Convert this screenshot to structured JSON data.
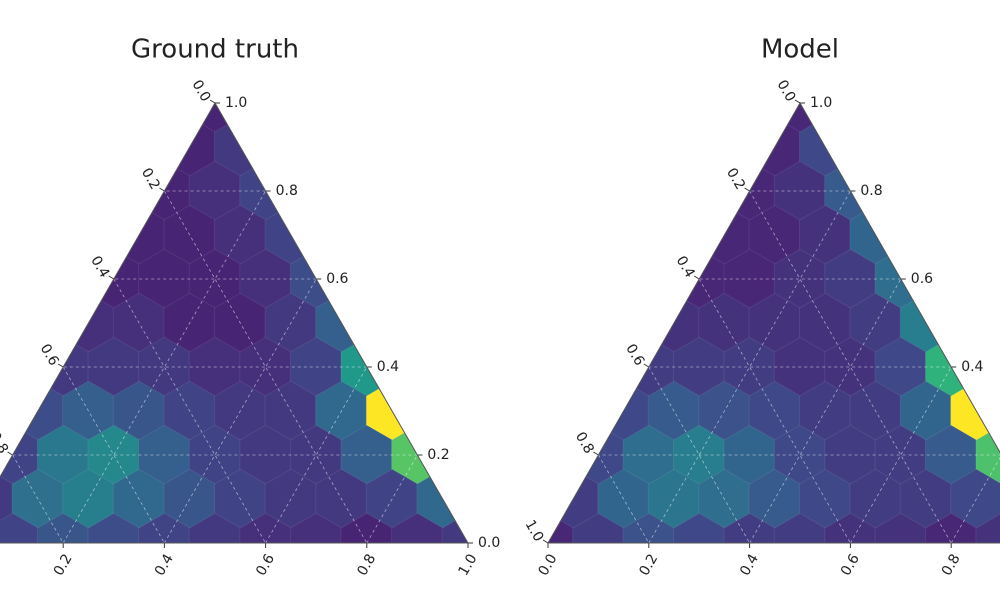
{
  "chart_data": [
    {
      "type": "ternary-hexbin",
      "title": "Ground truth",
      "colormap": "viridis",
      "grid": true,
      "ticks": [
        {
          "value": 0,
          "label": "0.0"
        },
        0.2,
        0.4,
        0.6,
        0.8,
        {
          "value": 1,
          "label": "1.0"
        }
      ],
      "density": [
        [
          3
        ],
        [
          3,
          5
        ],
        [
          3,
          4,
          6
        ],
        [
          3,
          3,
          4,
          6
        ],
        [
          3,
          3,
          3,
          4,
          7
        ],
        [
          4,
          4,
          3,
          3,
          5,
          9
        ],
        [
          5,
          5,
          5,
          4,
          4,
          6,
          16
        ],
        [
          7,
          9,
          8,
          6,
          5,
          5,
          10,
          30
        ],
        [
          6,
          12,
          14,
          9,
          6,
          5,
          5,
          9,
          22
        ],
        [
          5,
          11,
          13,
          10,
          8,
          6,
          5,
          5,
          6,
          10
        ],
        [
          3,
          6,
          8,
          7,
          6,
          5,
          4,
          4,
          3,
          4,
          5
        ]
      ]
    },
    {
      "type": "ternary-hexbin",
      "title": "Model",
      "colormap": "viridis",
      "grid": true,
      "ticks": [
        {
          "value": 0,
          "label": "0.0"
        },
        0.2,
        0.4,
        0.6,
        0.8,
        {
          "value": 1,
          "label": "1.0"
        }
      ],
      "density": [
        [
          3
        ],
        [
          3,
          6
        ],
        [
          3,
          4,
          8
        ],
        [
          3,
          3,
          4,
          9
        ],
        [
          3,
          3,
          4,
          5,
          10
        ],
        [
          4,
          4,
          4,
          4,
          5,
          12
        ],
        [
          5,
          5,
          5,
          4,
          4,
          6,
          18
        ],
        [
          6,
          8,
          7,
          6,
          5,
          5,
          9,
          28
        ],
        [
          6,
          10,
          12,
          9,
          6,
          5,
          5,
          8,
          20
        ],
        [
          5,
          9,
          11,
          10,
          8,
          6,
          5,
          5,
          6,
          9
        ],
        [
          3,
          5,
          7,
          6,
          5,
          5,
          4,
          4,
          3,
          4,
          5
        ]
      ]
    }
  ]
}
